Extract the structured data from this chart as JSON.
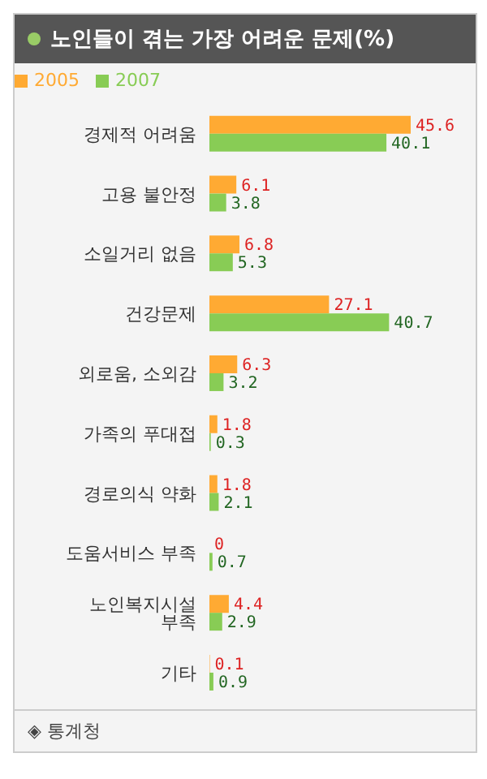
{
  "chart_data": {
    "type": "bar",
    "orientation": "horizontal",
    "title": "노인들이 겪는 가장 어려운 문제(%)",
    "categories": [
      "경제적 어려움",
      "고용 불안정",
      "소일거리 없음",
      "건강문제",
      "외로움, 소외감",
      "가족의 푸대접",
      "경로의식 약화",
      "도움서비스 부족",
      "노인복지시설 부족",
      "기타"
    ],
    "series": [
      {
        "name": "2005",
        "color": "#ffaa33",
        "values": [
          45.6,
          6.1,
          6.8,
          27.1,
          6.3,
          1.8,
          1.8,
          0,
          4.4,
          0.1
        ]
      },
      {
        "name": "2007",
        "color": "#88cc55",
        "values": [
          40.1,
          3.8,
          5.3,
          40.7,
          3.2,
          0.3,
          2.1,
          0.7,
          2.9,
          0.9
        ]
      }
    ],
    "data_labels": true,
    "legend": "top left",
    "tick_labels": "y",
    "annotations": [
      "◈ 통계청"
    ]
  }
}
